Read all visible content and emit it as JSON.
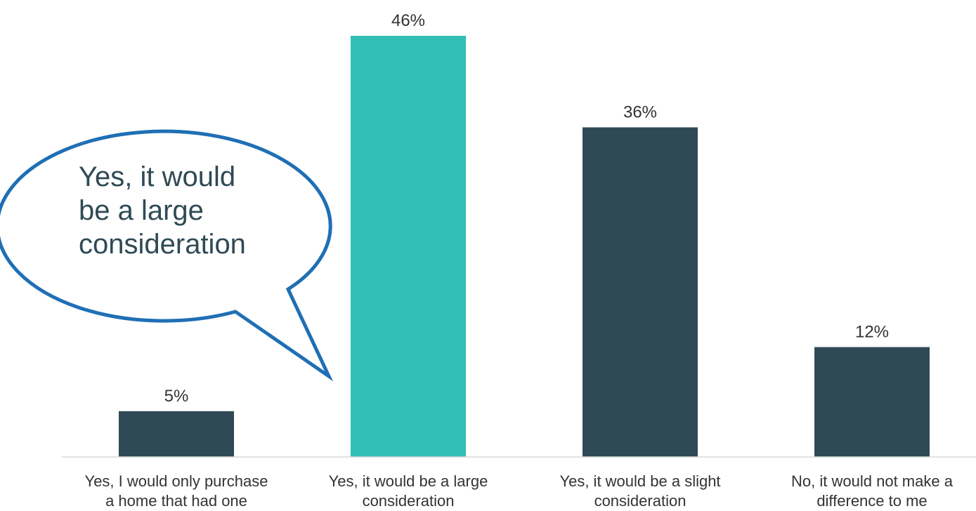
{
  "chart_data": {
    "type": "bar",
    "categories": [
      "Yes, I would only purchase\na home that had one",
      "Yes, it would be a large\nconsideration",
      "Yes, it would be a slight\nconsideration",
      "No, it would not make a\ndifference to me"
    ],
    "values": [
      5,
      46,
      36,
      12
    ],
    "value_labels": [
      "5%",
      "46%",
      "36%",
      "12%"
    ],
    "ylim": [
      0,
      46
    ],
    "grid": false,
    "legend": "none",
    "colors": {
      "default_bar": "#2f4a55",
      "highlight_bar": "#31bfb6",
      "axis": "#d9d9d9",
      "text": "#333333",
      "callout_border": "#1f6fb5"
    },
    "highlight_index": 1
  },
  "callout": {
    "text": "Yes, it would be a large consideration",
    "lines": [
      "Yes, it would",
      "be a large",
      "consideration"
    ]
  }
}
